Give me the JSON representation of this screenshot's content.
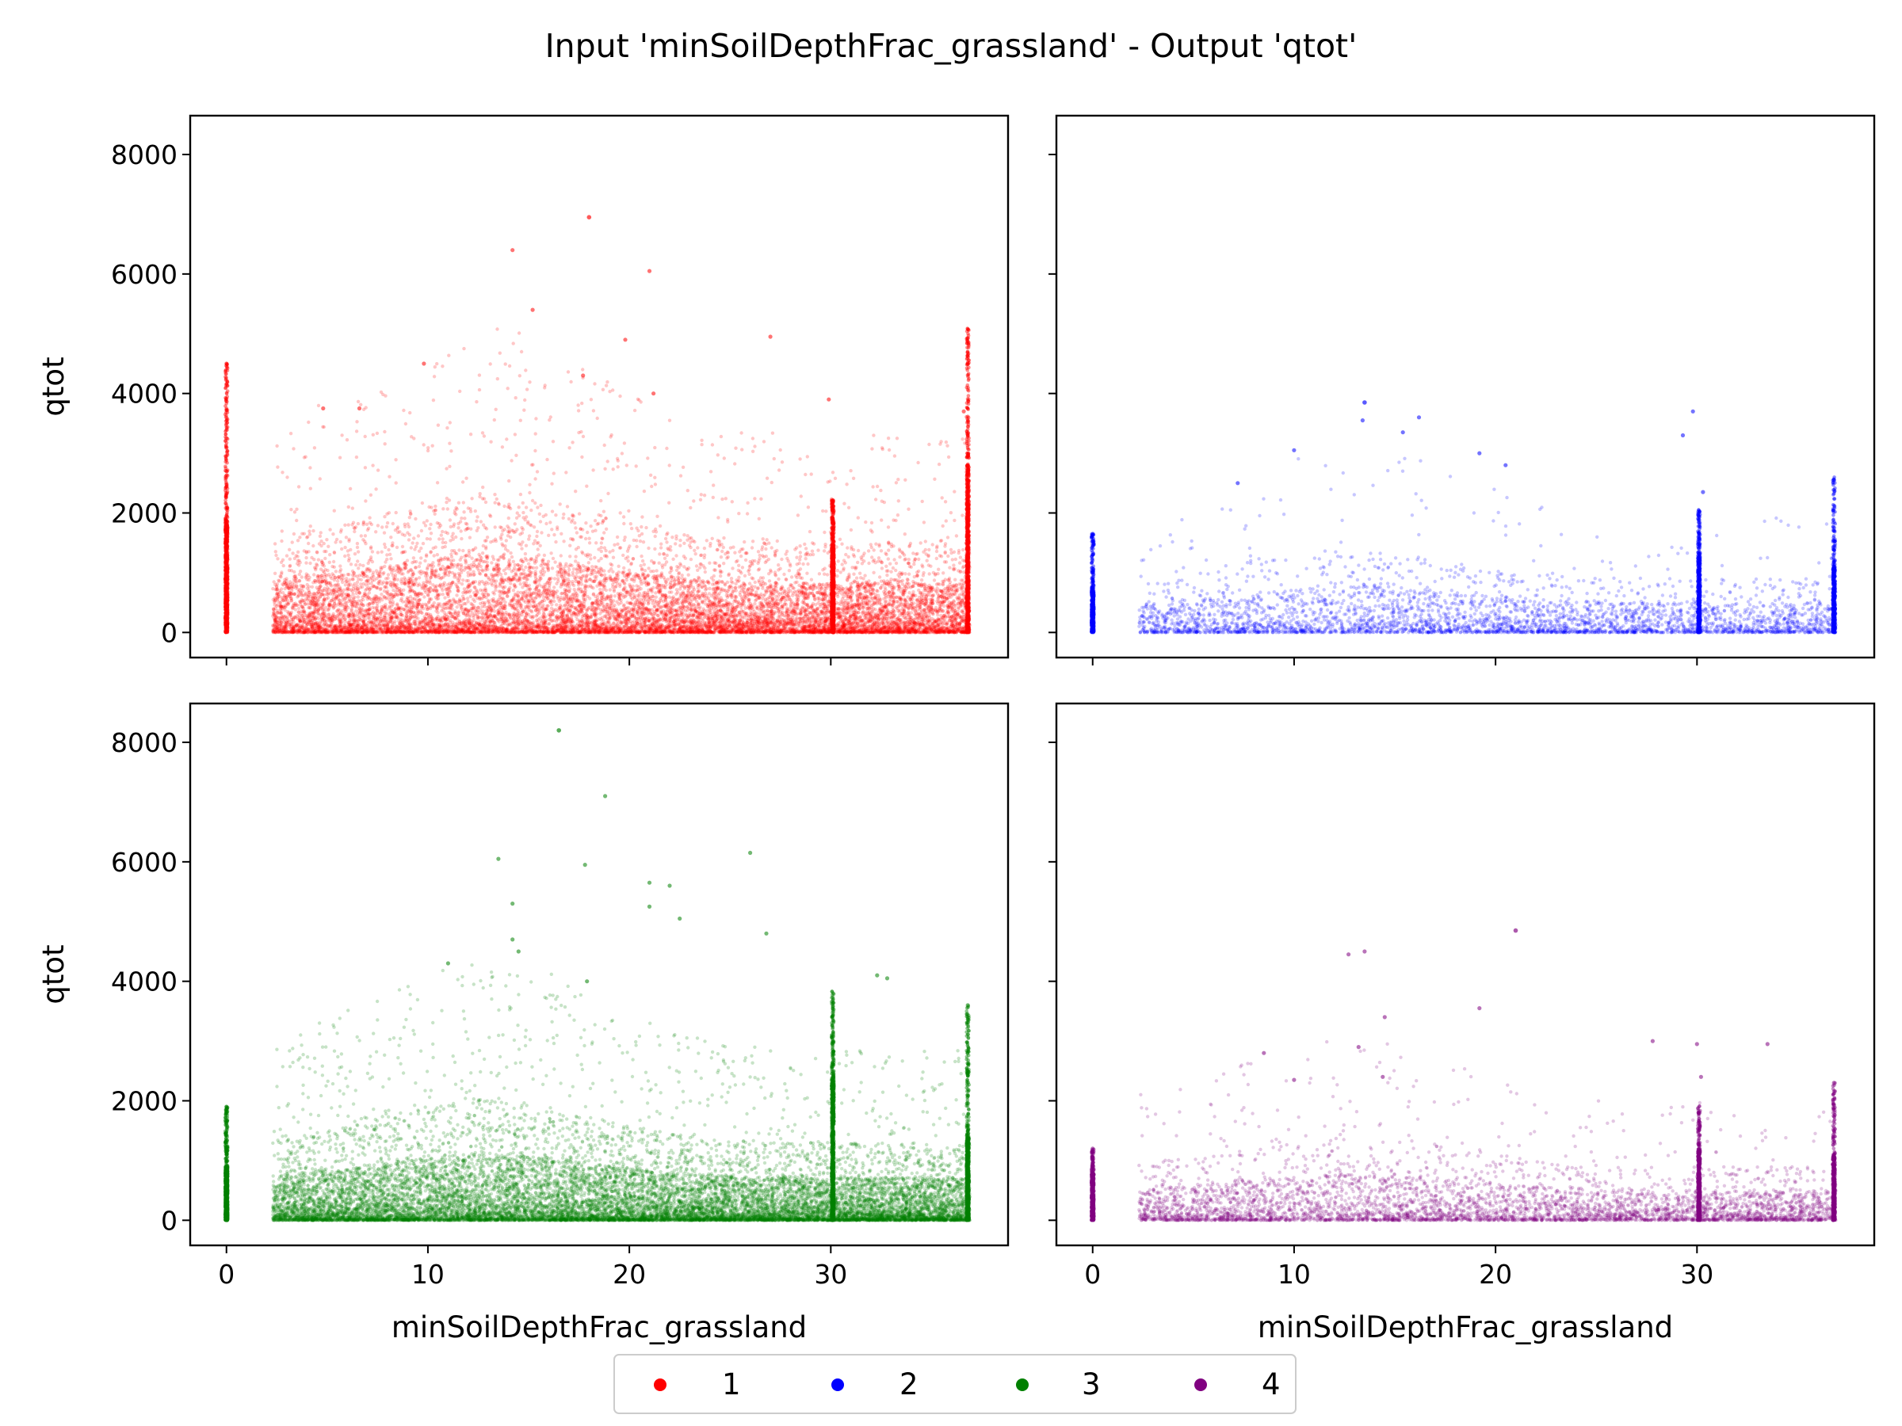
{
  "chart_data": {
    "type": "scatter",
    "title": "Input 'minSoilDepthFrac_grassland' - Output 'qtot'",
    "xlabel": "minSoilDepthFrac_grassland",
    "ylabel": "qtot",
    "xlim": [
      -1.8,
      38.8
    ],
    "ylim": [
      -420,
      8650
    ],
    "x_ticks": [
      0,
      10,
      20,
      30
    ],
    "y_ticks": [
      0,
      2000,
      4000,
      6000,
      8000
    ],
    "grid": false,
    "legend": {
      "placement": "bottom-center",
      "entries": [
        "1",
        "2",
        "3",
        "4"
      ]
    },
    "panels": [
      {
        "name": "1",
        "color": "#ff0000",
        "x_label_shown": false,
        "y_label_shown": true,
        "cluster_at_x": [
          {
            "x": 0,
            "ymax": 1900,
            "ymax_scatter": 4500
          },
          {
            "x": 30.1,
            "ymax": 1400
          },
          {
            "x": 36.8,
            "ymax": 2800,
            "ymax_scatter": 5100
          }
        ],
        "approx_max_point": {
          "x": 18,
          "y": 6950
        },
        "highlights": [
          {
            "x": 14.2,
            "y": 6400
          },
          {
            "x": 21,
            "y": 6050
          },
          {
            "x": 15.2,
            "y": 5400
          },
          {
            "x": 19.8,
            "y": 4900
          },
          {
            "x": 27,
            "y": 4950
          },
          {
            "x": 9.8,
            "y": 4500
          },
          {
            "x": 17.7,
            "y": 4300
          },
          {
            "x": 21.2,
            "y": 4000
          },
          {
            "x": 29.9,
            "y": 3900
          },
          {
            "x": 4.8,
            "y": 3750
          },
          {
            "x": 6.6,
            "y": 3750
          },
          {
            "x": 0,
            "y": 4500
          },
          {
            "x": 0,
            "y": 3250
          },
          {
            "x": 0,
            "y": 2700
          },
          {
            "x": 36.6,
            "y": 3700
          },
          {
            "x": 36.8,
            "y": 4500
          }
        ],
        "density": {
          "points": 12000,
          "x_min": 2.3,
          "x_max": 36.9,
          "typical_max": 1500
        }
      },
      {
        "name": "2",
        "color": "#0000ff",
        "x_label_shown": false,
        "y_label_shown": false,
        "cluster_at_x": [
          {
            "x": 0,
            "ymax": 750,
            "ymax_scatter": 1650
          },
          {
            "x": 30.1,
            "ymax": 1300
          },
          {
            "x": 36.8,
            "ymax": 1100,
            "ymax_scatter": 2600
          }
        ],
        "approx_max_point": {
          "x": 13.5,
          "y": 3850
        },
        "highlights": [
          {
            "x": 13.4,
            "y": 3550
          },
          {
            "x": 16.2,
            "y": 3600
          },
          {
            "x": 15.4,
            "y": 3350
          },
          {
            "x": 29.8,
            "y": 3700
          },
          {
            "x": 29.3,
            "y": 3300
          },
          {
            "x": 10,
            "y": 3050
          },
          {
            "x": 19.2,
            "y": 3000
          },
          {
            "x": 20.5,
            "y": 2800
          },
          {
            "x": 30.3,
            "y": 2350
          },
          {
            "x": 36.8,
            "y": 2550
          },
          {
            "x": 7.2,
            "y": 2500
          },
          {
            "x": 0,
            "y": 1650
          }
        ],
        "density": {
          "points": 3500,
          "x_min": 2.3,
          "x_max": 36.9,
          "typical_max": 900
        }
      },
      {
        "name": "3",
        "color": "#008000",
        "x_label_shown": true,
        "y_label_shown": true,
        "cluster_at_x": [
          {
            "x": 0,
            "ymax": 900,
            "ymax_scatter": 1900
          },
          {
            "x": 30.1,
            "ymax": 2400
          },
          {
            "x": 36.8,
            "ymax": 1400,
            "ymax_scatter": 3600
          }
        ],
        "approx_max_point": {
          "x": 16.5,
          "y": 8200
        },
        "highlights": [
          {
            "x": 18.8,
            "y": 7100
          },
          {
            "x": 26,
            "y": 6150
          },
          {
            "x": 13.5,
            "y": 6050
          },
          {
            "x": 17.8,
            "y": 5950
          },
          {
            "x": 21,
            "y": 5650
          },
          {
            "x": 22,
            "y": 5600
          },
          {
            "x": 14.2,
            "y": 5300
          },
          {
            "x": 21,
            "y": 5250
          },
          {
            "x": 22.5,
            "y": 5050
          },
          {
            "x": 26.8,
            "y": 4800
          },
          {
            "x": 14.2,
            "y": 4700
          },
          {
            "x": 14.5,
            "y": 4500
          },
          {
            "x": 11,
            "y": 4300
          },
          {
            "x": 32.3,
            "y": 4100
          },
          {
            "x": 32.8,
            "y": 4050
          },
          {
            "x": 17.9,
            "y": 4000
          },
          {
            "x": 36.8,
            "y": 3600
          },
          {
            "x": 0,
            "y": 1900
          }
        ],
        "density": {
          "points": 14000,
          "x_min": 2.3,
          "x_max": 36.9,
          "typical_max": 1300
        }
      },
      {
        "name": "4",
        "color": "#800080",
        "x_label_shown": true,
        "y_label_shown": false,
        "cluster_at_x": [
          {
            "x": 0,
            "ymax": 800,
            "ymax_scatter": 1200
          },
          {
            "x": 30.1,
            "ymax": 1200
          },
          {
            "x": 36.8,
            "ymax": 1100,
            "ymax_scatter": 2300
          }
        ],
        "approx_max_point": {
          "x": 21,
          "y": 4850
        },
        "highlights": [
          {
            "x": 13.5,
            "y": 4500
          },
          {
            "x": 12.7,
            "y": 4450
          },
          {
            "x": 19.2,
            "y": 3550
          },
          {
            "x": 14.5,
            "y": 3400
          },
          {
            "x": 27.8,
            "y": 3000
          },
          {
            "x": 30,
            "y": 2950
          },
          {
            "x": 33.5,
            "y": 2950
          },
          {
            "x": 8.5,
            "y": 2800
          },
          {
            "x": 13.2,
            "y": 2900
          },
          {
            "x": 14.4,
            "y": 2400
          },
          {
            "x": 10,
            "y": 2350
          },
          {
            "x": 30.2,
            "y": 2400
          },
          {
            "x": 36.8,
            "y": 2300
          },
          {
            "x": 0,
            "y": 1200
          }
        ],
        "density": {
          "points": 4500,
          "x_min": 2.3,
          "x_max": 36.9,
          "typical_max": 900
        }
      }
    ]
  }
}
